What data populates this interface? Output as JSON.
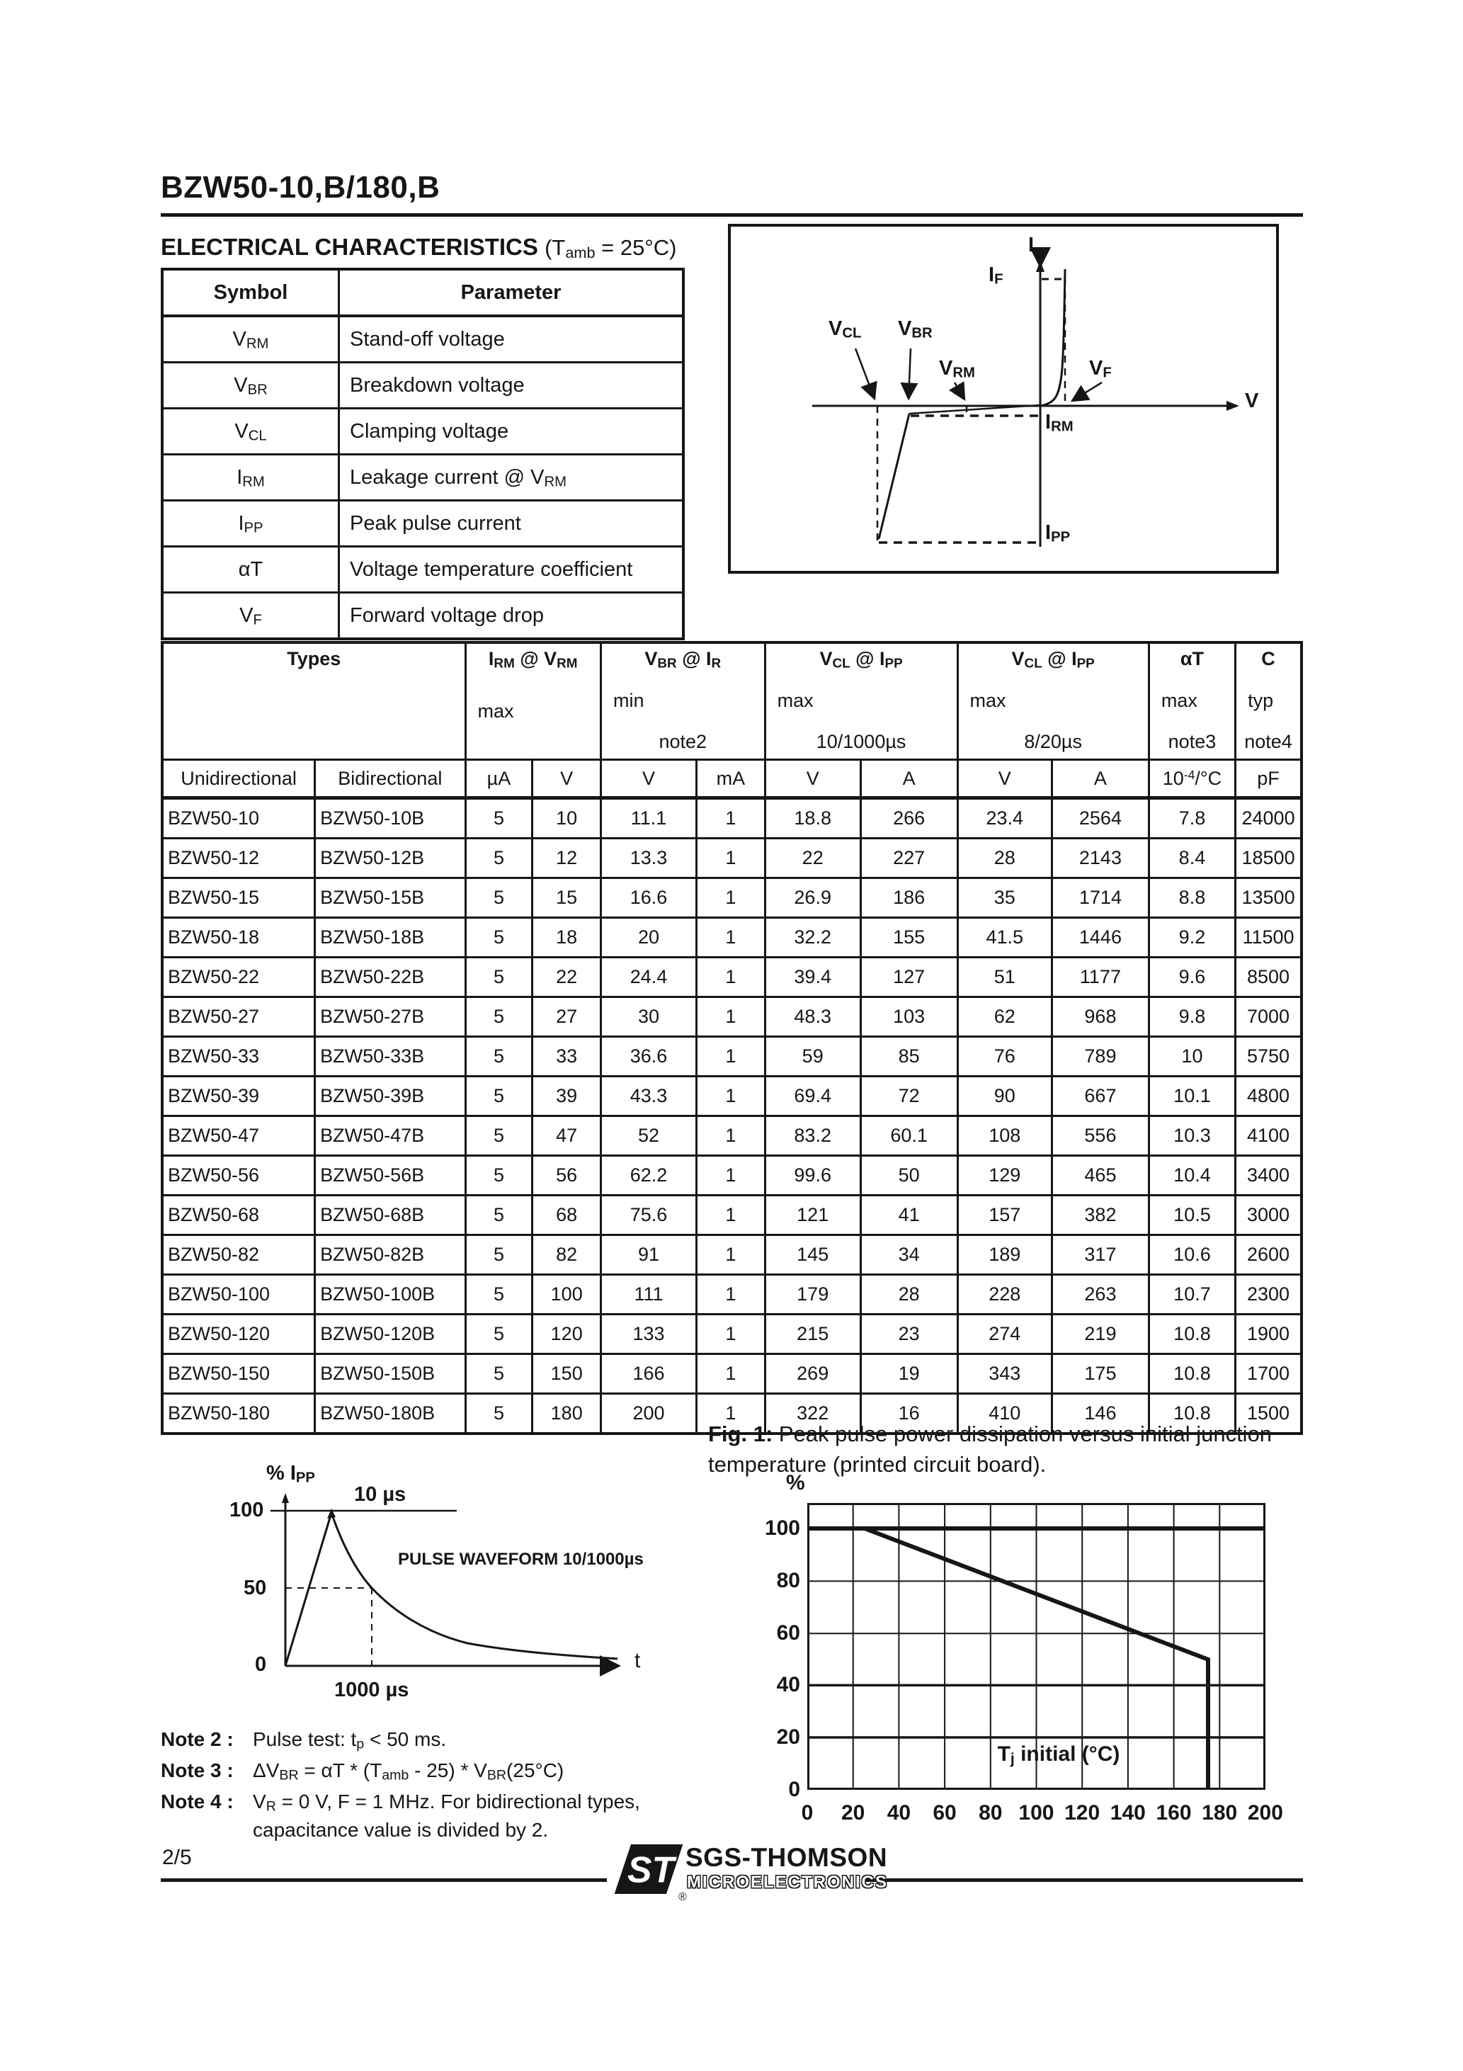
{
  "header": {
    "part_number": "BZW50-10,B/180,B",
    "section_title": "ELECTRICAL CHARACTERISTICS",
    "section_condition": "(T_amb_ = 25°C)"
  },
  "symbol_table": {
    "headers": [
      "Symbol",
      "Parameter"
    ],
    "rows": [
      [
        "V_RM_",
        "Stand-off voltage"
      ],
      [
        "V_BR_",
        "Breakdown voltage"
      ],
      [
        "V_CL_",
        "Clamping voltage"
      ],
      [
        "I_RM_",
        "Leakage current @ V_RM_"
      ],
      [
        "I_PP_",
        "Peak pulse current"
      ],
      [
        "αT",
        "Voltage temperature coefficient"
      ],
      [
        "V_F_",
        "Forward voltage drop"
      ]
    ]
  },
  "iv_diagram": {
    "labels": {
      "i_axis": "I",
      "v_axis": "V",
      "if": "I_F_",
      "vf": "V_F_",
      "vcl": "V_CL_",
      "vbr": "V_BR_",
      "vrm": "V_RM_",
      "irm": "I_RM_",
      "ipp": "I_PP_"
    }
  },
  "main_table": {
    "group_headers": {
      "types": "Types",
      "irm": {
        "title": "I_RM_ @ V_RM_",
        "line2": "max",
        "line3": ""
      },
      "vbr": {
        "title": "V_BR_  @  I_R_",
        "line2": "min",
        "line3": "note2"
      },
      "vcl1": {
        "title": "V_CL_ @ I_PP_",
        "line2": "max",
        "line3": "10/1000µs"
      },
      "vcl2": {
        "title": "V_CL_ @ I_PP_",
        "line2": "max",
        "line3": "8/20µs"
      },
      "alphat": {
        "title": "αT",
        "line2": "max",
        "line3": "note3"
      },
      "c": {
        "title": "C",
        "line2": "typ",
        "line3": "note4"
      }
    },
    "unit_row": [
      "Unidirectional",
      "Bidirectional",
      "µA",
      "V",
      "V",
      "mA",
      "V",
      "A",
      "V",
      "A",
      "10^-4^/°C",
      "pF"
    ],
    "rows": [
      [
        "BZW50-10",
        "BZW50-10B",
        "5",
        "10",
        "11.1",
        "1",
        "18.8",
        "266",
        "23.4",
        "2564",
        "7.8",
        "24000"
      ],
      [
        "BZW50-12",
        "BZW50-12B",
        "5",
        "12",
        "13.3",
        "1",
        "22",
        "227",
        "28",
        "2143",
        "8.4",
        "18500"
      ],
      [
        "BZW50-15",
        "BZW50-15B",
        "5",
        "15",
        "16.6",
        "1",
        "26.9",
        "186",
        "35",
        "1714",
        "8.8",
        "13500"
      ],
      [
        "BZW50-18",
        "BZW50-18B",
        "5",
        "18",
        "20",
        "1",
        "32.2",
        "155",
        "41.5",
        "1446",
        "9.2",
        "11500"
      ],
      [
        "BZW50-22",
        "BZW50-22B",
        "5",
        "22",
        "24.4",
        "1",
        "39.4",
        "127",
        "51",
        "1177",
        "9.6",
        "8500"
      ],
      [
        "BZW50-27",
        "BZW50-27B",
        "5",
        "27",
        "30",
        "1",
        "48.3",
        "103",
        "62",
        "968",
        "9.8",
        "7000"
      ],
      [
        "BZW50-33",
        "BZW50-33B",
        "5",
        "33",
        "36.6",
        "1",
        "59",
        "85",
        "76",
        "789",
        "10",
        "5750"
      ],
      [
        "BZW50-39",
        "BZW50-39B",
        "5",
        "39",
        "43.3",
        "1",
        "69.4",
        "72",
        "90",
        "667",
        "10.1",
        "4800"
      ],
      [
        "BZW50-47",
        "BZW50-47B",
        "5",
        "47",
        "52",
        "1",
        "83.2",
        "60.1",
        "108",
        "556",
        "10.3",
        "4100"
      ],
      [
        "BZW50-56",
        "BZW50-56B",
        "5",
        "56",
        "62.2",
        "1",
        "99.6",
        "50",
        "129",
        "465",
        "10.4",
        "3400"
      ],
      [
        "BZW50-68",
        "BZW50-68B",
        "5",
        "68",
        "75.6",
        "1",
        "121",
        "41",
        "157",
        "382",
        "10.5",
        "3000"
      ],
      [
        "BZW50-82",
        "BZW50-82B",
        "5",
        "82",
        "91",
        "1",
        "145",
        "34",
        "189",
        "317",
        "10.6",
        "2600"
      ],
      [
        "BZW50-100",
        "BZW50-100B",
        "5",
        "100",
        "111",
        "1",
        "179",
        "28",
        "228",
        "263",
        "10.7",
        "2300"
      ],
      [
        "BZW50-120",
        "BZW50-120B",
        "5",
        "120",
        "133",
        "1",
        "215",
        "23",
        "274",
        "219",
        "10.8",
        "1900"
      ],
      [
        "BZW50-150",
        "BZW50-150B",
        "5",
        "150",
        "166",
        "1",
        "269",
        "19",
        "343",
        "175",
        "10.8",
        "1700"
      ],
      [
        "BZW50-180",
        "BZW50-180B",
        "5",
        "180",
        "200",
        "1",
        "322",
        "16",
        "410",
        "146",
        "10.8",
        "1500"
      ]
    ]
  },
  "pulse_chart": {
    "ylabel": "% I_PP_",
    "tick_100": "100",
    "tick_50": "50",
    "tick_0": "0",
    "label_10us": "10 µs",
    "label_waveform": "PULSE WAVEFORM 10/1000µs",
    "label_1000us": "1000 µs",
    "xlabel": "t"
  },
  "fig1": {
    "caption_bold": "Fig. 1:",
    "caption_rest": " Peak pulse power dissipation versus initial junction temperature (printed circuit board).",
    "ylabel": "%",
    "xlabel": "T_j_ initial (°C)",
    "y_ticks": [
      "100",
      "80",
      "60",
      "40",
      "20",
      "0"
    ],
    "x_ticks": [
      "0",
      "20",
      "40",
      "60",
      "80",
      "100",
      "120",
      "140",
      "160",
      "180",
      "200"
    ]
  },
  "chart_data": [
    {
      "id": "fig1-derating",
      "type": "line",
      "title": "Fig. 1: Peak pulse power dissipation versus initial junction temperature (printed circuit board).",
      "xlabel": "Tj initial (°C)",
      "ylabel": "%",
      "xlim": [
        0,
        200
      ],
      "ylim": [
        0,
        110
      ],
      "x_ticks": [
        0,
        20,
        40,
        60,
        80,
        100,
        120,
        140,
        160,
        180,
        200
      ],
      "y_ticks": [
        0,
        20,
        40,
        60,
        80,
        100
      ],
      "grid": true,
      "series": [
        {
          "name": "100% reference line",
          "points": [
            [
              0,
              100
            ],
            [
              200,
              100
            ]
          ]
        },
        {
          "name": "peak pulse power derating",
          "points": [
            [
              0,
              100
            ],
            [
              25,
              100
            ],
            [
              175,
              50
            ],
            [
              175,
              0
            ]
          ]
        }
      ]
    },
    {
      "id": "pulse-waveform",
      "type": "line",
      "title": "PULSE WAVEFORM 10/1000µs",
      "xlabel": "t",
      "ylabel": "% IPP",
      "y_ticks": [
        0,
        50,
        100
      ],
      "annotations": [
        "10 µs rise to 100%",
        "50% at 1000 µs"
      ],
      "series": [
        {
          "name": "pulse",
          "points_t_us": [
            0,
            10,
            1000,
            5000
          ],
          "values_pct": [
            0,
            100,
            50,
            8
          ]
        }
      ]
    }
  ],
  "notes": [
    {
      "label": "Note 2 :",
      "text": "Pulse test: t_p_ < 50 ms."
    },
    {
      "label": "Note 3 :",
      "text": "ΔV_BR_ = αT * (T_amb_ - 25) * V_BR_(25°C)"
    },
    {
      "label": "Note 4 :",
      "text": "V_R_ = 0 V,  F = 1 MHz. For bidirectional types,",
      "text2": "capacitance value is divided by 2."
    }
  ],
  "footer": {
    "page_number": "2/5",
    "logo_letters": "ST",
    "reg_mark": "®",
    "brand": "SGS-THOMSON",
    "brand_sub": "MICROELECTRONICS"
  }
}
